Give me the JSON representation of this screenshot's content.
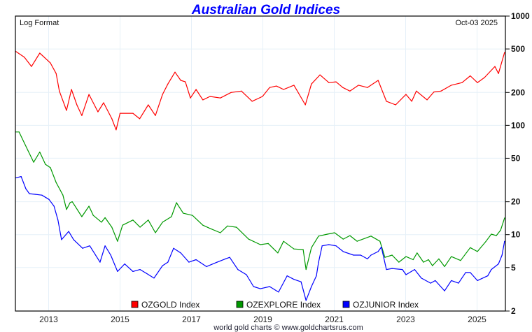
{
  "chart_data": {
    "type": "line",
    "title": "Australian Gold Indices",
    "scale_note": "Log Format",
    "date_label": "Oct-03  2025",
    "yscale": "log",
    "ylim": [
      2,
      1000
    ],
    "xlim": [
      2012.07,
      2025.8
    ],
    "y_ticks": [
      1000,
      500,
      200,
      100,
      50,
      20,
      10,
      5,
      2
    ],
    "y_tick_labels": [
      "1000",
      "500",
      "200",
      "100",
      "50",
      "20",
      "10",
      "5",
      "2"
    ],
    "x_ticks": [
      2013,
      2015,
      2017,
      2019,
      2021,
      2023,
      2025
    ],
    "x_tick_labels": [
      "2013",
      "2015",
      "2017",
      "2019",
      "2021",
      "2023",
      "2025"
    ],
    "grid": true,
    "legend_placement": "bottom",
    "footer": "world gold charts © www.goldchartsrus.com",
    "series": [
      {
        "name": "OZGOLD Index",
        "color": "#ff0000",
        "x": [
          2012.07,
          2012.32,
          2012.52,
          2012.75,
          2013.05,
          2013.21,
          2013.3,
          2013.5,
          2013.64,
          2013.79,
          2013.93,
          2014.13,
          2014.38,
          2014.54,
          2014.77,
          2014.89,
          2015.0,
          2015.36,
          2015.55,
          2015.79,
          2015.99,
          2016.19,
          2016.34,
          2016.54,
          2016.7,
          2016.83,
          2016.97,
          2017.13,
          2017.32,
          2017.52,
          2017.81,
          2018.11,
          2018.4,
          2018.7,
          2018.99,
          2019.19,
          2019.38,
          2019.58,
          2019.87,
          2020.19,
          2020.36,
          2020.6,
          2020.85,
          2021.05,
          2021.24,
          2021.44,
          2021.68,
          2021.93,
          2022.23,
          2022.46,
          2022.72,
          2023.01,
          2023.17,
          2023.3,
          2023.6,
          2023.79,
          2023.99,
          2024.28,
          2024.58,
          2024.81,
          2025.01,
          2025.21,
          2025.5,
          2025.6,
          2025.77
        ],
        "values": [
          477,
          420,
          346,
          458,
          372,
          298,
          206,
          137,
          213,
          154,
          123,
          192,
          133,
          161,
          115,
          91,
          129,
          129,
          115,
          154,
          123,
          192,
          239,
          307,
          258,
          250,
          178,
          213,
          171,
          184,
          178,
          200,
          206,
          166,
          184,
          222,
          229,
          213,
          233,
          154,
          239,
          290,
          246,
          250,
          222,
          206,
          233,
          222,
          258,
          166,
          154,
          192,
          166,
          206,
          171,
          202,
          206,
          233,
          246,
          284,
          246,
          274,
          346,
          298,
          464
        ]
      },
      {
        "name": "OZEXPLORE Index",
        "color": "#009900",
        "x": [
          2012.07,
          2012.17,
          2012.32,
          2012.42,
          2012.58,
          2012.75,
          2012.91,
          2013.05,
          2013.21,
          2013.4,
          2013.5,
          2013.6,
          2013.66,
          2013.93,
          2014.13,
          2014.25,
          2014.48,
          2014.58,
          2014.77,
          2014.93,
          2015.07,
          2015.36,
          2015.56,
          2015.79,
          2015.99,
          2016.19,
          2016.44,
          2016.58,
          2016.77,
          2017.03,
          2017.32,
          2017.52,
          2017.81,
          2018.01,
          2018.26,
          2018.6,
          2018.93,
          2019.15,
          2019.42,
          2019.58,
          2019.87,
          2020.13,
          2020.21,
          2020.36,
          2020.56,
          2020.81,
          2021.01,
          2021.25,
          2021.44,
          2021.64,
          2022.03,
          2022.28,
          2022.42,
          2022.62,
          2022.81,
          2023.01,
          2023.21,
          2023.32,
          2023.5,
          2023.64,
          2023.75,
          2023.93,
          2024.09,
          2024.28,
          2024.54,
          2024.81,
          2025.01,
          2025.25,
          2025.4,
          2025.54,
          2025.66,
          2025.77
        ],
        "values": [
          87,
          87,
          69,
          59,
          46,
          57,
          44,
          41,
          30,
          23,
          17,
          19.6,
          20,
          14.6,
          18.2,
          15,
          13,
          14.3,
          11.7,
          8.7,
          12.2,
          13.6,
          11.7,
          13.6,
          10.4,
          13,
          14.6,
          19.6,
          15.7,
          15,
          12.2,
          11.4,
          10.4,
          12,
          11.7,
          9.1,
          8.1,
          8.3,
          6.8,
          8.7,
          7.4,
          7.3,
          4.8,
          7.6,
          9.7,
          10.1,
          10.4,
          9.1,
          9.8,
          8.7,
          9.7,
          8.7,
          6.2,
          6.5,
          5.6,
          6.3,
          5.9,
          6.8,
          5.6,
          5.9,
          5.2,
          6.0,
          5.1,
          6.3,
          5.8,
          7.6,
          7.0,
          8.7,
          10.1,
          9.8,
          11,
          14.2
        ]
      },
      {
        "name": "OZJUNIOR Index",
        "color": "#0000ff",
        "x": [
          2012.07,
          2012.23,
          2012.36,
          2012.46,
          2012.62,
          2012.81,
          2013.01,
          2013.15,
          2013.26,
          2013.36,
          2013.56,
          2013.7,
          2013.95,
          2014.15,
          2014.44,
          2014.58,
          2014.74,
          2014.93,
          2015.13,
          2015.36,
          2015.56,
          2015.75,
          2015.95,
          2016.19,
          2016.34,
          2016.5,
          2016.7,
          2016.93,
          2017.13,
          2017.42,
          2017.72,
          2017.95,
          2018.07,
          2018.3,
          2018.54,
          2018.74,
          2018.93,
          2019.19,
          2019.44,
          2019.68,
          2019.87,
          2020.07,
          2020.21,
          2020.36,
          2020.5,
          2020.56,
          2020.66,
          2020.85,
          2021.05,
          2021.25,
          2021.54,
          2021.74,
          2021.93,
          2022.03,
          2022.23,
          2022.32,
          2022.46,
          2022.62,
          2022.91,
          2023.01,
          2023.25,
          2023.44,
          2023.7,
          2023.83,
          2024.09,
          2024.28,
          2024.48,
          2024.68,
          2024.81,
          2025.01,
          2025.3,
          2025.4,
          2025.6,
          2025.7,
          2025.77
        ],
        "values": [
          33,
          34,
          26.3,
          23.7,
          23.4,
          23,
          21,
          18.2,
          13.6,
          9,
          10.7,
          9,
          7.5,
          7.9,
          5.6,
          7.9,
          6.5,
          4.6,
          5.4,
          4.6,
          4.8,
          4.4,
          4.0,
          5.2,
          5.6,
          7.5,
          6.8,
          5.6,
          5.9,
          5.1,
          5.6,
          6,
          6.2,
          4.8,
          4.3,
          3.35,
          3.2,
          3.35,
          2.98,
          4.2,
          3.9,
          3.7,
          2.5,
          3.35,
          4.2,
          5.6,
          7.9,
          8.1,
          7.9,
          7.0,
          6.5,
          6.5,
          6.0,
          6.5,
          7.0,
          7.7,
          4.8,
          4.9,
          4.8,
          4.3,
          4.8,
          4.0,
          3.6,
          3.8,
          3.06,
          3.8,
          3.6,
          4.5,
          4.5,
          3.8,
          4.2,
          4.8,
          5.4,
          6.5,
          8.7
        ]
      }
    ]
  }
}
